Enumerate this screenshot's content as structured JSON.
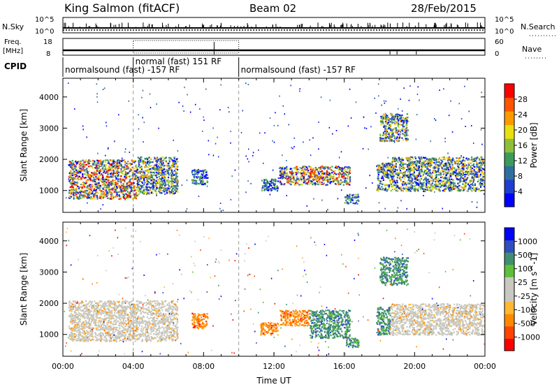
{
  "header": {
    "station": "King Salmon (fitACF)",
    "beam": "Beam 02",
    "date": "28/Feb/2015"
  },
  "status_panels": {
    "left_labels": {
      "nsky": "N.Sky",
      "freq_line1": "Freq.",
      "freq_line2": "[MHz]",
      "cpid": "CPID"
    },
    "right_labels": {
      "nsearch": "N.Search",
      "nave": "Nave"
    },
    "nsky_ticks": [
      "10^5",
      "10^0"
    ],
    "nsearch_ticks": [
      "10^5",
      "10^0"
    ],
    "freq_ticks": [
      "18",
      "8"
    ],
    "nave_ticks": [
      "60",
      "0"
    ],
    "cpid_segments": [
      {
        "label": "normalsound (fast) -157 RF",
        "start_ut": 0.0,
        "end_ut": 10.0,
        "row": "lower"
      },
      {
        "label": "normal (fast) 151 RF",
        "start_ut": 4.0,
        "end_ut": 10.0,
        "row": "upper"
      },
      {
        "label": "normalsound (fast) -157 RF",
        "start_ut": 10.0,
        "end_ut": 24.0,
        "row": "lower"
      }
    ]
  },
  "colors": {
    "power_scale": [
      "#0000ff",
      "#1f3fd0",
      "#2f6f9f",
      "#3b9b5a",
      "#8fbf3a",
      "#e8e010",
      "#ff9900",
      "#ff5500",
      "#ff0000"
    ],
    "velocity_scale": [
      "#ff0000",
      "#ff4400",
      "#ff8800",
      "#ffb830",
      "#c8c8c0",
      "#c8c8c0",
      "#5fbf3a",
      "#3f8f6f",
      "#2f4fbf",
      "#0000ff"
    ]
  },
  "chart_data": [
    {
      "type": "heatmap",
      "name_shown": "",
      "xlabel": "",
      "ylabel": "Slant Range [km]",
      "xlim": [
        0,
        24
      ],
      "ylim": [
        300,
        4600
      ],
      "yticks": [
        "1000",
        "2000",
        "3000",
        "4000"
      ],
      "colorbar": {
        "label": "Power [dB]",
        "ticks": [
          "4",
          "8",
          "12",
          "16",
          "20",
          "24",
          "28"
        ],
        "range": [
          0,
          30
        ]
      },
      "echo_regions": [
        {
          "t0": 0.3,
          "t1": 4.2,
          "r0": 750,
          "r1": 2000,
          "level": "high"
        },
        {
          "t0": 4.2,
          "t1": 6.5,
          "r0": 900,
          "r1": 2100,
          "level": "medium"
        },
        {
          "t0": 7.3,
          "t1": 8.2,
          "r0": 1200,
          "r1": 1700,
          "level": "low"
        },
        {
          "t0": 11.2,
          "t1": 12.2,
          "r0": 1000,
          "r1": 1400,
          "level": "low"
        },
        {
          "t0": 12.3,
          "t1": 16.3,
          "r0": 1200,
          "r1": 1800,
          "level": "high"
        },
        {
          "t0": 16.0,
          "t1": 16.8,
          "r0": 600,
          "r1": 900,
          "level": "low"
        },
        {
          "t0": 17.8,
          "t1": 18.6,
          "r0": 1000,
          "r1": 1900,
          "level": "medium"
        },
        {
          "t0": 18.0,
          "t1": 19.6,
          "r0": 2600,
          "r1": 3500,
          "level": "medium"
        },
        {
          "t0": 18.6,
          "t1": 24.0,
          "r0": 1000,
          "r1": 2100,
          "level": "medium"
        }
      ]
    },
    {
      "type": "heatmap",
      "name_shown": "",
      "xlabel": "Time UT",
      "ylabel": "Slant Range [km]",
      "xlim": [
        0,
        24
      ],
      "ylim": [
        300,
        4600
      ],
      "xticks": [
        "00:00",
        "04:00",
        "08:00",
        "12:00",
        "16:00",
        "20:00",
        "00:00"
      ],
      "yticks": [
        "1000",
        "2000",
        "3000",
        "4000"
      ],
      "colorbar": {
        "label": "Velocity [m s^-1]",
        "ticks": [
          "-1000",
          "-500",
          "-100",
          "-25",
          "25",
          "100",
          "500",
          "1000"
        ],
        "range": [
          -1000,
          1000
        ]
      },
      "echo_regions": [
        {
          "t0": 0.3,
          "t1": 6.5,
          "r0": 800,
          "r1": 2100,
          "class": "ground scatter"
        },
        {
          "t0": 7.3,
          "t1": 8.2,
          "r0": 1200,
          "r1": 1700,
          "class": "away"
        },
        {
          "t0": 11.2,
          "t1": 12.2,
          "r0": 1000,
          "r1": 1400,
          "class": "away"
        },
        {
          "t0": 12.3,
          "t1": 14.0,
          "r0": 1300,
          "r1": 1800,
          "class": "away"
        },
        {
          "t0": 14.0,
          "t1": 16.3,
          "r0": 900,
          "r1": 1800,
          "class": "toward"
        },
        {
          "t0": 16.0,
          "t1": 16.8,
          "r0": 600,
          "r1": 900,
          "class": "toward"
        },
        {
          "t0": 17.8,
          "t1": 18.6,
          "r0": 1000,
          "r1": 1900,
          "class": "toward"
        },
        {
          "t0": 18.0,
          "t1": 19.6,
          "r0": 2600,
          "r1": 3500,
          "class": "toward"
        },
        {
          "t0": 18.6,
          "t1": 24.0,
          "r0": 1000,
          "r1": 2000,
          "class": "ground scatter"
        }
      ]
    }
  ]
}
